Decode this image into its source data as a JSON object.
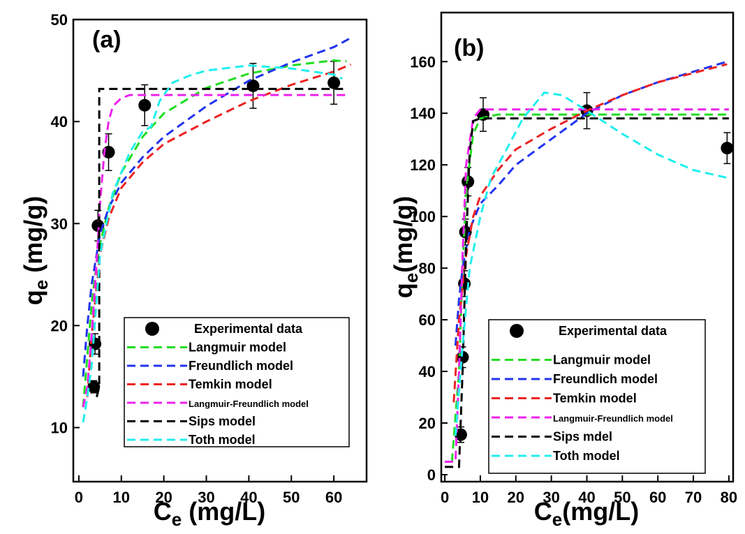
{
  "chart_data": [
    {
      "type": "line",
      "panel_label": "(a)",
      "xlabel": [
        "C",
        "e",
        " (mg/L)"
      ],
      "ylabel": [
        "q",
        "e",
        " (mg/g)"
      ],
      "xlim": [
        -1.3,
        67.7
      ],
      "ylim": [
        4.7,
        50
      ],
      "xticks": [
        0,
        10,
        20,
        30,
        40,
        50,
        60
      ],
      "yticks": [
        10,
        20,
        30,
        40,
        50
      ],
      "legend_loc": "lower right",
      "series": [
        {
          "name": "Experimental data",
          "type": "scatter",
          "color": "#000000",
          "x": [
            3.5,
            3.8,
            4.5,
            7,
            15.5,
            41,
            60
          ],
          "values": [
            14.0,
            18.2,
            29.8,
            37.0,
            41.6,
            43.5,
            43.8
          ],
          "errors": [
            0.6,
            1.0,
            1.5,
            1.8,
            2.0,
            2.2,
            2.1
          ]
        },
        {
          "name": "Langmuir model",
          "type": "line",
          "linestyle": "dashed",
          "color": "#22dd22",
          "x": [
            1,
            2,
            3,
            4,
            5,
            7,
            10,
            15,
            20,
            30,
            40,
            50,
            60,
            63
          ],
          "values": [
            12,
            17,
            22,
            25.5,
            28,
            31.5,
            35,
            38.5,
            40.8,
            43.3,
            44.7,
            45.5,
            46,
            45.9
          ]
        },
        {
          "name": "Freundlich model",
          "type": "line",
          "linestyle": "dashed",
          "color": "#2233ee",
          "x": [
            1,
            2,
            3,
            5,
            7,
            10,
            15,
            20,
            30,
            40,
            50,
            60,
            64
          ],
          "values": [
            15,
            20,
            24,
            29,
            31.5,
            34,
            36.5,
            38.5,
            41.5,
            44,
            45.8,
            47.3,
            48.2
          ]
        },
        {
          "name": "Temkin model",
          "type": "line",
          "linestyle": "dashed",
          "color": "#ee2222",
          "x": [
            2,
            3,
            5,
            7,
            10,
            15,
            20,
            30,
            40,
            50,
            60,
            64
          ],
          "values": [
            13,
            19,
            27,
            30.5,
            33.5,
            36,
            37.8,
            40,
            42,
            43.6,
            44.9,
            45.6
          ]
        },
        {
          "name": "Langmuir-Freundlich model",
          "type": "line",
          "linestyle": "dashed",
          "color": "#ee22ee",
          "x": [
            1,
            2,
            3,
            4,
            5,
            6,
            7,
            8,
            10,
            12,
            63
          ],
          "values": [
            12,
            14,
            19,
            25,
            32,
            37,
            40,
            41.5,
            42.3,
            42.6,
            42.6
          ]
        },
        {
          "name": "Sips model",
          "type": "line",
          "linestyle": "dashed",
          "color": "#000000",
          "x": [
            4.2,
            4.8,
            4.8,
            63
          ],
          "values": [
            13,
            14,
            43.2,
            43.2
          ]
        },
        {
          "name": "Toth model",
          "type": "line",
          "linestyle": "dashed",
          "color": "#22eeee",
          "x": [
            1,
            2,
            3,
            5,
            8,
            12,
            15,
            17,
            19,
            22,
            26,
            30,
            40,
            50,
            60,
            62
          ],
          "values": [
            10.5,
            13,
            16,
            27,
            33,
            37,
            39,
            39.5,
            42,
            43.8,
            44.5,
            45,
            45.5,
            45.2,
            44.6,
            44.2
          ]
        }
      ]
    },
    {
      "type": "line",
      "panel_label": "(b)",
      "xlabel": [
        "C",
        "e",
        "(mg/L)"
      ],
      "ylabel": [
        "q",
        "e",
        "(mg/g)"
      ],
      "xlim": [
        -1,
        81.2
      ],
      "ylim": [
        -2.7,
        179
      ],
      "xticks": [
        0,
        10,
        20,
        30,
        40,
        50,
        60,
        70,
        80
      ],
      "yticks": [
        0,
        20,
        40,
        60,
        80,
        100,
        120,
        140,
        160
      ],
      "legend_loc": "lower right",
      "series": [
        {
          "name": "Experimental data",
          "type": "scatter",
          "color": "#000000",
          "x": [
            4.5,
            5,
            5.5,
            5.8,
            6.5,
            10.8,
            40,
            79.5
          ],
          "values": [
            15.5,
            45.5,
            74,
            94,
            113.5,
            139.5,
            141,
            126.5
          ],
          "errors": [
            3,
            4,
            5,
            5,
            5.5,
            6.5,
            7,
            6
          ]
        },
        {
          "name": "Langmuir model",
          "type": "line",
          "linestyle": "dashed",
          "color": "#22dd22",
          "x": [
            2,
            4,
            5,
            6,
            8,
            10,
            15,
            80
          ],
          "values": [
            5,
            40,
            80,
            110,
            132,
            138,
            139.5,
            139.5
          ]
        },
        {
          "name": "Freundlich model",
          "type": "line",
          "linestyle": "dashed",
          "color": "#2233ee",
          "x": [
            3,
            4,
            5,
            7,
            10,
            15,
            20,
            30,
            40,
            50,
            60,
            79.5
          ],
          "values": [
            50,
            68,
            80,
            95,
            105,
            112,
            120,
            130,
            140,
            147,
            152,
            160
          ]
        },
        {
          "name": "Temkin model",
          "type": "line",
          "linestyle": "dashed",
          "color": "#ee2222",
          "x": [
            2.5,
            4,
            6,
            8,
            10,
            15,
            20,
            30,
            40,
            50,
            60,
            79.5
          ],
          "values": [
            28,
            60,
            85,
            100,
            108,
            118,
            126,
            134,
            141,
            147,
            152,
            159
          ]
        },
        {
          "name": "Langmuir-Freundlich model",
          "type": "line",
          "linestyle": "dashed",
          "color": "#ee22ee",
          "x": [
            0,
            3,
            4,
            5,
            6,
            8,
            10,
            80
          ],
          "values": [
            5,
            5,
            40,
            85,
            120,
            138,
            141.5,
            141.5
          ]
        },
        {
          "name": "Sips mdel",
          "type": "line",
          "linestyle": "dashed",
          "color": "#000000",
          "x": [
            0,
            4,
            5,
            6,
            7,
            8,
            10,
            80
          ],
          "values": [
            3,
            3,
            40,
            90,
            125,
            137,
            138,
            138
          ]
        },
        {
          "name": "Toth model",
          "type": "line",
          "linestyle": "dashed",
          "color": "#22eeee",
          "x": [
            3,
            5,
            7,
            10,
            13,
            17,
            22,
            28,
            33,
            40,
            50,
            60,
            70,
            79.5
          ],
          "values": [
            15,
            50,
            80,
            100,
            115,
            125,
            138,
            148,
            147,
            141,
            132,
            124,
            118,
            115
          ]
        }
      ]
    }
  ]
}
